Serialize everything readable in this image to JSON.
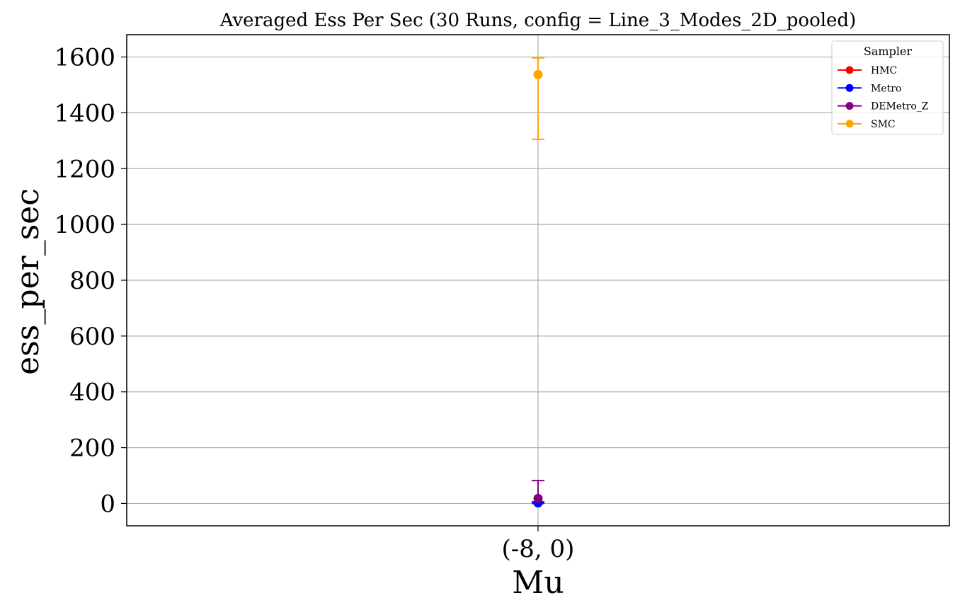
{
  "chart_data": {
    "type": "scatter",
    "title": "Averaged Ess Per Sec (30 Runs, config = Line_3_Modes_2D_pooled)",
    "xlabel": "Mu",
    "ylabel": "ess_per_sec",
    "categories": [
      "(-8, 0)"
    ],
    "ylim": [
      -80,
      1680
    ],
    "yticks": [
      0,
      200,
      400,
      600,
      800,
      1000,
      1200,
      1400,
      1600
    ],
    "ytick_labels": [
      "0",
      "200",
      "400",
      "600",
      "800",
      "1000",
      "1200",
      "1400",
      "1600"
    ],
    "grid": true,
    "legend": {
      "title": "Sampler",
      "placement": "top-right"
    },
    "series": [
      {
        "name": "HMC",
        "color": "#ff0000",
        "values": [
          3
        ],
        "err_low": [
          0
        ],
        "err_high": [
          6
        ]
      },
      {
        "name": "Metro",
        "color": "#0000ff",
        "values": [
          2
        ],
        "err_low": [
          0
        ],
        "err_high": [
          5
        ]
      },
      {
        "name": "DEMetro_Z",
        "color": "#800080",
        "values": [
          18
        ],
        "err_low": [
          0
        ],
        "err_high": [
          82
        ]
      },
      {
        "name": "SMC",
        "color": "#ffa500",
        "values": [
          1537
        ],
        "err_low": [
          1305
        ],
        "err_high": [
          1597
        ]
      }
    ]
  }
}
